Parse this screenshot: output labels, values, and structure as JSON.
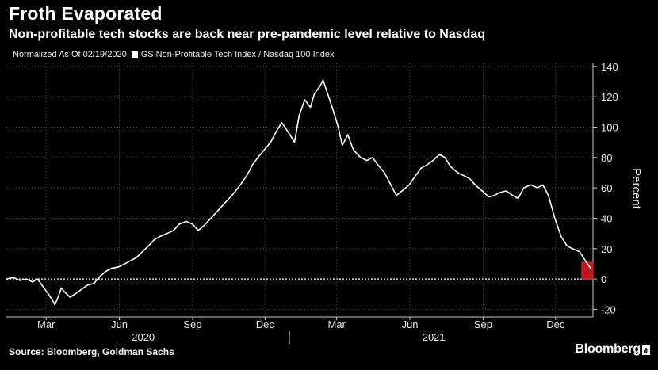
{
  "title": "Froth Evaporated",
  "subtitle": "Non-profitable tech stocks are back near pre-pandemic level relative to Nasdaq",
  "legend": {
    "note": "Normalized As Of 02/19/2020",
    "series": "GS Non-Profitable Tech Index / Nasdaq 100 Index"
  },
  "source": "Source: Bloomberg, Goldman Sachs",
  "brand": "Bloomberg",
  "colors": {
    "background": "#000000",
    "line": "#ffffff",
    "highlight": "#c0151c"
  },
  "chart_data": {
    "type": "line",
    "title": "Froth Evaporated",
    "subtitle": "Non-profitable tech stocks are back near pre-pandemic level relative to Nasdaq",
    "ylabel": "Percent",
    "ylim": [
      -25,
      142
    ],
    "yticks": [
      140,
      120,
      100,
      80,
      60,
      40,
      20,
      0,
      -20
    ],
    "xlim": [
      "2020-01-11",
      "2022-01-17"
    ],
    "xticks": [
      {
        "date": "2020-03-01",
        "label": "Mar"
      },
      {
        "date": "2020-06-01",
        "label": "Jun"
      },
      {
        "date": "2020-09-01",
        "label": "Sep"
      },
      {
        "date": "2020-12-01",
        "label": "Dec"
      },
      {
        "date": "2021-03-01",
        "label": "Mar"
      },
      {
        "date": "2021-06-01",
        "label": "Jun"
      },
      {
        "date": "2021-09-01",
        "label": "Sep"
      },
      {
        "date": "2021-12-01",
        "label": "Dec"
      }
    ],
    "years": [
      {
        "label": "2020",
        "mid": "2020-07-01"
      },
      {
        "label": "2021",
        "mid": "2021-07-01"
      }
    ],
    "year_divider": "2021-01-01",
    "reference_line": 0,
    "grid": true,
    "series": [
      {
        "name": "GS Non-Profitable Tech Index / Nasdaq 100 Index",
        "points": [
          [
            "2020-01-11",
            0
          ],
          [
            "2020-01-20",
            1
          ],
          [
            "2020-01-28",
            -1
          ],
          [
            "2020-02-05",
            0
          ],
          [
            "2020-02-13",
            -2
          ],
          [
            "2020-02-19",
            0
          ],
          [
            "2020-02-26",
            -5
          ],
          [
            "2020-03-04",
            -10
          ],
          [
            "2020-03-09",
            -14
          ],
          [
            "2020-03-12",
            -17
          ],
          [
            "2020-03-16",
            -12
          ],
          [
            "2020-03-20",
            -6
          ],
          [
            "2020-03-25",
            -9
          ],
          [
            "2020-03-31",
            -12
          ],
          [
            "2020-04-06",
            -10
          ],
          [
            "2020-04-14",
            -7
          ],
          [
            "2020-04-22",
            -4
          ],
          [
            "2020-04-30",
            -3
          ],
          [
            "2020-05-08",
            2
          ],
          [
            "2020-05-15",
            5
          ],
          [
            "2020-05-22",
            7
          ],
          [
            "2020-05-31",
            8
          ],
          [
            "2020-06-08",
            10
          ],
          [
            "2020-06-15",
            12
          ],
          [
            "2020-06-22",
            14
          ],
          [
            "2020-06-30",
            18
          ],
          [
            "2020-07-08",
            22
          ],
          [
            "2020-07-15",
            26
          ],
          [
            "2020-07-22",
            28
          ],
          [
            "2020-07-31",
            30
          ],
          [
            "2020-08-08",
            32
          ],
          [
            "2020-08-15",
            36
          ],
          [
            "2020-08-24",
            38
          ],
          [
            "2020-09-01",
            36
          ],
          [
            "2020-09-08",
            32
          ],
          [
            "2020-09-15",
            35
          ],
          [
            "2020-09-24",
            40
          ],
          [
            "2020-10-01",
            44
          ],
          [
            "2020-10-08",
            48
          ],
          [
            "2020-10-15",
            52
          ],
          [
            "2020-10-22",
            56
          ],
          [
            "2020-10-31",
            62
          ],
          [
            "2020-11-08",
            68
          ],
          [
            "2020-11-15",
            75
          ],
          [
            "2020-11-22",
            80
          ],
          [
            "2020-11-30",
            85
          ],
          [
            "2020-12-08",
            90
          ],
          [
            "2020-12-15",
            97
          ],
          [
            "2020-12-22",
            103
          ],
          [
            "2020-12-31",
            96
          ],
          [
            "2021-01-07",
            90
          ],
          [
            "2021-01-13",
            108
          ],
          [
            "2021-01-20",
            118
          ],
          [
            "2021-01-27",
            113
          ],
          [
            "2021-02-01",
            122
          ],
          [
            "2021-02-08",
            127
          ],
          [
            "2021-02-12",
            131
          ],
          [
            "2021-02-17",
            123
          ],
          [
            "2021-02-24",
            112
          ],
          [
            "2021-03-03",
            100
          ],
          [
            "2021-03-08",
            88
          ],
          [
            "2021-03-15",
            95
          ],
          [
            "2021-03-22",
            85
          ],
          [
            "2021-03-31",
            80
          ],
          [
            "2021-04-08",
            78
          ],
          [
            "2021-04-15",
            80
          ],
          [
            "2021-04-22",
            75
          ],
          [
            "2021-04-30",
            70
          ],
          [
            "2021-05-08",
            62
          ],
          [
            "2021-05-15",
            55
          ],
          [
            "2021-05-22",
            58
          ],
          [
            "2021-05-31",
            62
          ],
          [
            "2021-06-08",
            68
          ],
          [
            "2021-06-15",
            73
          ],
          [
            "2021-06-22",
            75
          ],
          [
            "2021-06-30",
            78
          ],
          [
            "2021-07-08",
            82
          ],
          [
            "2021-07-15",
            80
          ],
          [
            "2021-07-22",
            74
          ],
          [
            "2021-07-31",
            70
          ],
          [
            "2021-08-08",
            68
          ],
          [
            "2021-08-15",
            66
          ],
          [
            "2021-08-22",
            62
          ],
          [
            "2021-08-31",
            58
          ],
          [
            "2021-09-08",
            54
          ],
          [
            "2021-09-15",
            55
          ],
          [
            "2021-09-22",
            57
          ],
          [
            "2021-09-30",
            58
          ],
          [
            "2021-10-08",
            55
          ],
          [
            "2021-10-15",
            53
          ],
          [
            "2021-10-22",
            60
          ],
          [
            "2021-10-31",
            62
          ],
          [
            "2021-11-08",
            60
          ],
          [
            "2021-11-15",
            62
          ],
          [
            "2021-11-22",
            55
          ],
          [
            "2021-11-30",
            40
          ],
          [
            "2021-12-08",
            28
          ],
          [
            "2021-12-15",
            22
          ],
          [
            "2021-12-22",
            20
          ],
          [
            "2021-12-31",
            18
          ],
          [
            "2022-01-05",
            14
          ],
          [
            "2022-01-10",
            10
          ],
          [
            "2022-01-14",
            7
          ]
        ]
      }
    ],
    "highlight": {
      "x_start": "2022-01-03",
      "x_end": "2022-01-17",
      "y_start": 0,
      "y_end": 11
    }
  }
}
